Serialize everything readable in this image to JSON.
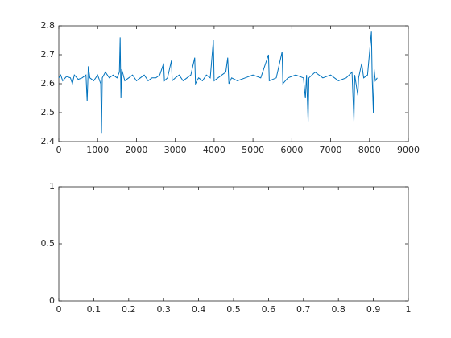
{
  "chart_data": [
    {
      "type": "line",
      "x": [
        0,
        50,
        100,
        200,
        300,
        350,
        400,
        500,
        600,
        700,
        730,
        760,
        800,
        900,
        1000,
        1080,
        1100,
        1120,
        1200,
        1300,
        1400,
        1500,
        1560,
        1580,
        1600,
        1620,
        1700,
        1800,
        1900,
        2000,
        2100,
        2200,
        2300,
        2400,
        2500,
        2600,
        2700,
        2720,
        2800,
        2900,
        2920,
        3000,
        3100,
        3200,
        3300,
        3400,
        3500,
        3520,
        3600,
        3700,
        3800,
        3900,
        3980,
        4000,
        4100,
        4200,
        4300,
        4350,
        4380,
        4450,
        4600,
        4800,
        5000,
        5200,
        5400,
        5420,
        5600,
        5750,
        5770,
        5900,
        6100,
        6300,
        6350,
        6380,
        6420,
        6440,
        6600,
        6800,
        7000,
        7200,
        7400,
        7550,
        7600,
        7620,
        7700,
        7720,
        7800,
        7850,
        7950,
        8050,
        8070,
        8100,
        8120,
        8150,
        8200
      ],
      "series": [
        {
          "color": "#0072bd",
          "values": [
            2.62,
            2.63,
            2.61,
            2.625,
            2.62,
            2.6,
            2.63,
            2.615,
            2.62,
            2.63,
            2.54,
            2.66,
            2.62,
            2.61,
            2.63,
            2.6,
            2.43,
            2.62,
            2.64,
            2.62,
            2.63,
            2.62,
            2.64,
            2.76,
            2.55,
            2.65,
            2.61,
            2.62,
            2.63,
            2.61,
            2.62,
            2.63,
            2.61,
            2.62,
            2.62,
            2.63,
            2.67,
            2.61,
            2.62,
            2.68,
            2.61,
            2.62,
            2.63,
            2.61,
            2.62,
            2.63,
            2.69,
            2.6,
            2.62,
            2.61,
            2.63,
            2.62,
            2.75,
            2.61,
            2.62,
            2.63,
            2.64,
            2.69,
            2.6,
            2.62,
            2.61,
            2.62,
            2.63,
            2.62,
            2.7,
            2.61,
            2.62,
            2.71,
            2.6,
            2.62,
            2.63,
            2.62,
            2.55,
            2.63,
            2.47,
            2.62,
            2.64,
            2.62,
            2.63,
            2.61,
            2.62,
            2.64,
            2.47,
            2.63,
            2.56,
            2.62,
            2.67,
            2.62,
            2.63,
            2.78,
            2.62,
            2.5,
            2.65,
            2.61,
            2.62
          ]
        }
      ],
      "xlim": [
        0,
        9000
      ],
      "xticks": [
        0,
        1000,
        2000,
        3000,
        4000,
        5000,
        6000,
        7000,
        8000,
        9000
      ],
      "ylim": [
        2.4,
        2.8
      ],
      "yticks": [
        2.4,
        2.5,
        2.6,
        2.7,
        2.8
      ]
    },
    {
      "type": "line",
      "xlim": [
        0,
        1
      ],
      "xticks": [
        0,
        0.1,
        0.2,
        0.3,
        0.4,
        0.5,
        0.6,
        0.7,
        0.8,
        0.9,
        1
      ],
      "ylim": [
        0,
        1
      ],
      "yticks": [
        0,
        0.5,
        1
      ]
    }
  ]
}
